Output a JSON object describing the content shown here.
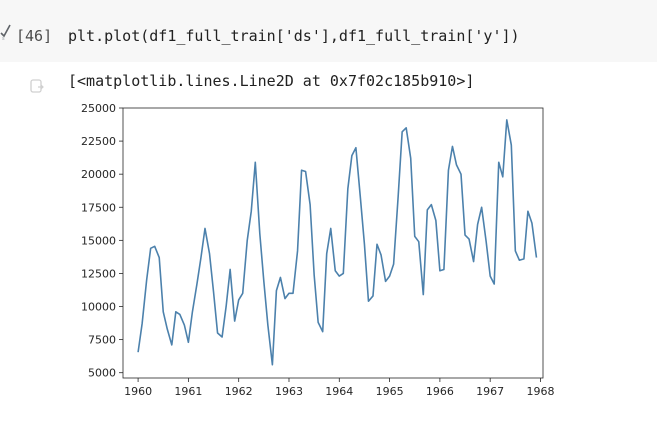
{
  "cell": {
    "execution_count": "[46]",
    "code": "plt.plot(df1_full_train['ds'],df1_full_train['y'])",
    "output_text": "[<matplotlib.lines.Line2D at 0x7f02c185b910>]",
    "run_status_icon": "check-icon",
    "output_icon": "output-clear-icon"
  },
  "chart_data": {
    "type": "line",
    "title": "",
    "xlabel": "",
    "ylabel": "",
    "xlim": [
      1959.7,
      1968.05
    ],
    "ylim": [
      4600,
      25000
    ],
    "x_ticks": [
      "1960",
      "1961",
      "1962",
      "1963",
      "1964",
      "1965",
      "1966",
      "1967",
      "1968"
    ],
    "y_ticks": [
      "5000",
      "7500",
      "10000",
      "12500",
      "15000",
      "17500",
      "20000",
      "22500",
      "25000"
    ],
    "grid": false,
    "line_color": "#4c81ac",
    "series": [
      {
        "x": [
          1960.0,
          1960.08,
          1960.17,
          1960.25,
          1960.33,
          1960.42,
          1960.5,
          1960.58,
          1960.67,
          1960.75,
          1960.83,
          1960.92,
          1961.0,
          1961.08,
          1961.17,
          1961.25,
          1961.33,
          1961.42,
          1961.5,
          1961.58,
          1961.67,
          1961.75,
          1961.83,
          1961.92,
          1962.0,
          1962.08,
          1962.17,
          1962.25,
          1962.33,
          1962.42,
          1962.5,
          1962.58,
          1962.67,
          1962.75,
          1962.83,
          1962.92,
          1963.0,
          1963.08,
          1963.17,
          1963.25,
          1963.33,
          1963.42,
          1963.5,
          1963.58,
          1963.67,
          1963.75,
          1963.83,
          1963.92,
          1964.0,
          1964.08,
          1964.17,
          1964.25,
          1964.33,
          1964.42,
          1964.5,
          1964.58,
          1964.67,
          1964.75,
          1964.83,
          1964.92,
          1965.0,
          1965.08,
          1965.17,
          1965.25,
          1965.33,
          1965.42,
          1965.5,
          1965.58,
          1965.67,
          1965.75,
          1965.83,
          1965.92,
          1966.0,
          1966.08,
          1966.17,
          1966.25,
          1966.33,
          1966.42,
          1966.5,
          1966.58,
          1966.67,
          1966.75,
          1966.83,
          1966.92,
          1967.0,
          1967.08,
          1967.17,
          1967.25,
          1967.33,
          1967.42,
          1967.5,
          1967.58,
          1967.67,
          1967.75,
          1967.83,
          1967.92
        ],
        "y": [
          6550,
          8700,
          12000,
          14400,
          14550,
          13700,
          9600,
          8300,
          7100,
          9600,
          9400,
          8600,
          7300,
          9600,
          11700,
          13700,
          15900,
          14000,
          11100,
          8000,
          7700,
          10000,
          12800,
          8900,
          10500,
          11000,
          15000,
          17200,
          20900,
          15500,
          11900,
          8600,
          5600,
          11200,
          12200,
          10600,
          11000,
          11000,
          14200,
          20300,
          20200,
          17700,
          12400,
          8800,
          8100,
          14000,
          15900,
          12700,
          12300,
          12500,
          18900,
          21400,
          22000,
          18200,
          14700,
          10400,
          10800,
          14700,
          13900,
          11900,
          12300,
          13200,
          18300,
          23200,
          23500,
          21200,
          15300,
          14900,
          10900,
          17300,
          17700,
          16500,
          12700,
          12800,
          20300,
          22100,
          20700,
          20000,
          15400,
          15100,
          13400,
          16200,
          17500,
          14900,
          12300,
          11700,
          20900,
          19800,
          24100,
          22200,
          14200,
          13500,
          13600,
          17200,
          16300,
          13700
        ]
      }
    ]
  }
}
